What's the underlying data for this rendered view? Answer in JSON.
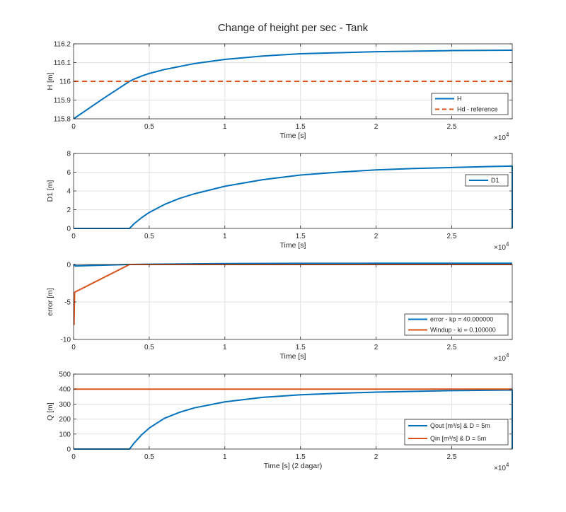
{
  "title": "Change of height per sec - Tank",
  "colors": {
    "blue": "#0072bd",
    "orange": "#d95319",
    "grid": "#dfdfdf",
    "axis": "#262626"
  },
  "chart_data": [
    {
      "type": "line",
      "xlabel": "Time [s]",
      "ylabel": "H [m]",
      "xlim": [
        0,
        2.9
      ],
      "x_exponent": "4",
      "ylim": [
        115.8,
        116.2
      ],
      "xticks": [
        0,
        0.5,
        1,
        1.5,
        2,
        2.5
      ],
      "xtick_labels": [
        "0",
        "0.5",
        "1",
        "1.5",
        "2",
        "2.5"
      ],
      "yticks": [
        115.8,
        115.9,
        116,
        116.1,
        116.2
      ],
      "ytick_labels": [
        "115.8",
        "115.9",
        "116",
        "116.1",
        "116.2"
      ],
      "grid": true,
      "legend_position": "bottom-right",
      "series": [
        {
          "name": "H",
          "color": "blue",
          "style": "solid",
          "x": [
            0,
            0.1,
            0.2,
            0.3,
            0.37,
            0.4,
            0.45,
            0.5,
            0.6,
            0.8,
            1.0,
            1.25,
            1.5,
            2.0,
            2.5,
            2.9
          ],
          "y": [
            115.8,
            115.855,
            115.91,
            115.963,
            116.0,
            116.012,
            116.028,
            116.042,
            116.063,
            116.095,
            116.117,
            116.135,
            116.147,
            116.158,
            116.164,
            116.166
          ]
        },
        {
          "name": "Hd - reference",
          "color": "orange",
          "style": "dashed",
          "x": [
            0,
            2.9
          ],
          "y": [
            116,
            116
          ]
        }
      ]
    },
    {
      "type": "line",
      "xlabel": "Time [s]",
      "ylabel": "D1 [m]",
      "xlim": [
        0,
        2.9
      ],
      "x_exponent": "4",
      "ylim": [
        0,
        8
      ],
      "xticks": [
        0,
        0.5,
        1,
        1.5,
        2,
        2.5
      ],
      "xtick_labels": [
        "0",
        "0.5",
        "1",
        "1.5",
        "2",
        "2.5"
      ],
      "yticks": [
        0,
        2,
        4,
        6,
        8
      ],
      "ytick_labels": [
        "0",
        "2",
        "4",
        "6",
        "8"
      ],
      "grid": true,
      "legend_position": "top-right",
      "series": [
        {
          "name": "D1",
          "color": "blue",
          "style": "solid",
          "x": [
            0,
            0.37,
            0.4,
            0.45,
            0.5,
            0.6,
            0.7,
            0.8,
            1.0,
            1.25,
            1.5,
            1.75,
            2.0,
            2.25,
            2.5,
            2.75,
            2.9,
            2.9
          ],
          "y": [
            0,
            0,
            0.5,
            1.15,
            1.7,
            2.55,
            3.2,
            3.7,
            4.5,
            5.2,
            5.7,
            6.0,
            6.25,
            6.4,
            6.5,
            6.6,
            6.65,
            0
          ]
        }
      ]
    },
    {
      "type": "line",
      "xlabel": "Time [s]",
      "ylabel": "error [m]",
      "xlim": [
        0,
        2.9
      ],
      "x_exponent": "4",
      "ylim": [
        -10,
        0
      ],
      "xticks": [
        0,
        0.5,
        1,
        1.5,
        2,
        2.5
      ],
      "xtick_labels": [
        "0",
        "0.5",
        "1",
        "1.5",
        "2",
        "2.5"
      ],
      "yticks": [
        -10,
        -5,
        0
      ],
      "ytick_labels": [
        "-10",
        "-5",
        "0"
      ],
      "grid": true,
      "legend_position": "bottom-right",
      "series": [
        {
          "name": "error - kp = 40.000000",
          "color": "blue",
          "style": "solid",
          "x": [
            0,
            0.005,
            0.01,
            0.37,
            0.5,
            1.0,
            1.5,
            2.0,
            2.5,
            2.9
          ],
          "y": [
            0,
            0,
            -0.2,
            0,
            0.04,
            0.12,
            0.15,
            0.16,
            0.165,
            0.166
          ]
        },
        {
          "name": "Windup - ki = 0.100000",
          "color": "orange",
          "style": "solid",
          "x": [
            0,
            0.003,
            0.007,
            0.37,
            2.9
          ],
          "y": [
            -8,
            -8,
            -3.7,
            0,
            0
          ]
        }
      ]
    },
    {
      "type": "line",
      "xlabel": "Time [s] (2 dagar)",
      "ylabel": "Q [m]",
      "xlim": [
        0,
        2.9
      ],
      "x_exponent": "4",
      "ylim": [
        0,
        500
      ],
      "xticks": [
        0,
        0.5,
        1,
        1.5,
        2,
        2.5
      ],
      "xtick_labels": [
        "0",
        "0.5",
        "1",
        "1.5",
        "2",
        "2.5"
      ],
      "yticks": [
        0,
        100,
        200,
        300,
        400,
        500
      ],
      "ytick_labels": [
        "0",
        "100",
        "200",
        "300",
        "400",
        "500"
      ],
      "grid": true,
      "legend_position": "bottom-right",
      "series": [
        {
          "name": "Qout [m³/s] & D = 5m",
          "color": "blue",
          "style": "solid",
          "x": [
            0,
            0.37,
            0.4,
            0.45,
            0.5,
            0.6,
            0.7,
            0.8,
            1.0,
            1.25,
            1.5,
            1.75,
            2.0,
            2.5,
            2.9,
            2.9
          ],
          "y": [
            0,
            0,
            40,
            95,
            140,
            205,
            245,
            275,
            315,
            345,
            362,
            372,
            380,
            390,
            394,
            0
          ]
        },
        {
          "name": "Qin [m³/s] & D = 5m",
          "color": "orange",
          "style": "solid",
          "x": [
            0,
            2.9
          ],
          "y": [
            400,
            400
          ]
        }
      ]
    }
  ]
}
